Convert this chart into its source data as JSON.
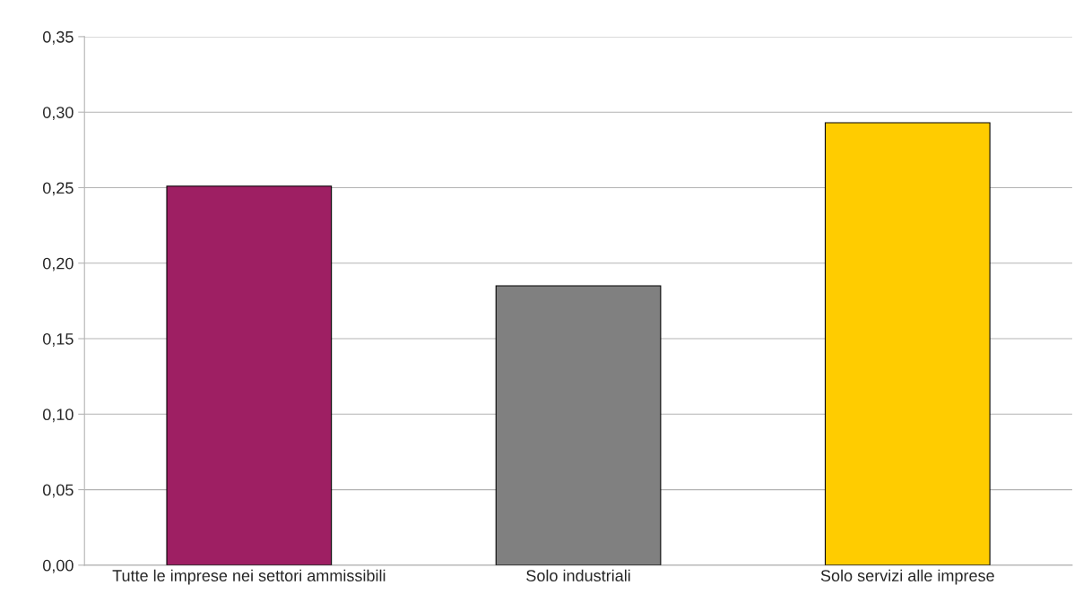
{
  "chart_data": {
    "type": "bar",
    "categories": [
      "Tutte le imprese nei settori ammissibili",
      "Solo industriali",
      "Solo servizi alle imprese"
    ],
    "values": [
      0.251,
      0.185,
      0.293
    ],
    "colors": [
      "#9e1f63",
      "#808080",
      "#ffcc00"
    ],
    "ylim": [
      0,
      0.35
    ],
    "yticks": [
      {
        "value": 0,
        "label": "0,00"
      },
      {
        "value": 0.05,
        "label": "0,05"
      },
      {
        "value": 0.1,
        "label": "0,10"
      },
      {
        "value": 0.15,
        "label": "0,15"
      },
      {
        "value": 0.2,
        "label": "0,20"
      },
      {
        "value": 0.25,
        "label": "0,25"
      },
      {
        "value": 0.3,
        "label": "0,30"
      },
      {
        "value": 0.35,
        "label": "0,35"
      }
    ],
    "grid": "y",
    "legend": false
  }
}
